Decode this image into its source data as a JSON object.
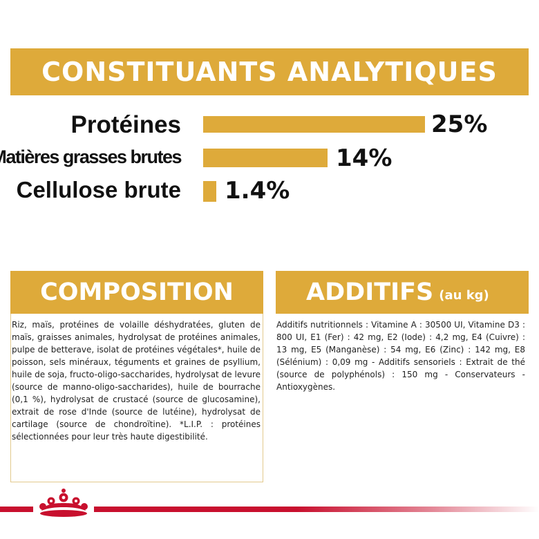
{
  "analytics": {
    "title": "CONSTITUANTS ANALYTIQUES",
    "items": [
      {
        "label": "Protéines",
        "value": "25%",
        "percent": 25
      },
      {
        "label": "Matières grasses brutes",
        "value": "14%",
        "percent": 14
      },
      {
        "label": "Cellulose brute",
        "value": "1.4%",
        "percent": 1.4
      }
    ]
  },
  "composition": {
    "title": "COMPOSITION",
    "text": "Riz, maïs, protéines de volaille déshydratées, gluten de maïs, graisses animales, hydrolysat de protéines animales, pulpe de betterave, isolat de protéines végétales*, huile de poisson, sels minéraux, téguments et graines de psyllium, huile de soja, fructo-oligo-saccharides, hydrolysat de levure (source de manno-oligo-saccharides), huile de bourrache (0,1 %), hydrolysat de crustacé (source de glucosamine), extrait de rose d'Inde (source de lutéine), hydrolysat de cartilage (source de chondroïtine). *L.I.P. : protéines sélectionnées pour leur très haute digestibilité."
  },
  "additifs": {
    "title": "ADDITIFS",
    "subtitle": "(au kg)",
    "text": "Additifs nutritionnels : Vitamine A : 30500 UI, Vitamine D3 : 800 UI, E1 (Fer) : 42 mg, E2 (Iode) : 4,2 mg, E4 (Cuivre) : 13 mg, E5 (Manganèse) : 54 mg, E6 (Zinc) : 142 mg, E8 (Sélénium) : 0,09 mg - Additifs sensoriels : Extrait de thé (source de polyphénols) : 150 mg - Conservateurs - Antioxygènes."
  },
  "colors": {
    "accent": "#deaa3a",
    "brand_red": "#c8102e"
  },
  "icons": {
    "logo": "royal-canin-crown-icon"
  }
}
